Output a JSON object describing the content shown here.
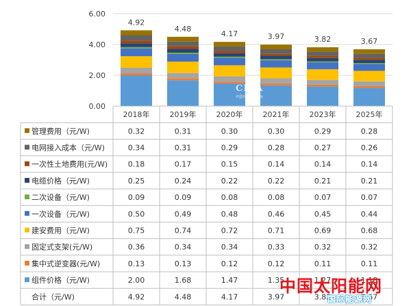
{
  "chart_data": {
    "type": "bar",
    "stacked": true,
    "categories": [
      "2018年",
      "2019年",
      "2020年",
      "2021年",
      "2023年",
      "2025年"
    ],
    "ylim": [
      0,
      6
    ],
    "yticks": [
      "0.00",
      "2.00",
      "4.00",
      "6.00"
    ],
    "totals": [
      "4.92",
      "4.48",
      "4.17",
      "3.97",
      "3.82",
      "3.67"
    ],
    "legend_placement": "table-below",
    "series": [
      {
        "name": "组件价格（元/W)",
        "color": "#5b9bd5",
        "values": [
          2.0,
          1.68,
          1.47,
          1.35,
          1.27,
          1.18
        ]
      },
      {
        "name": "集中式逆变器(元/W)",
        "color": "#ed7d31",
        "values": [
          0.13,
          0.13,
          0.12,
          0.12,
          0.11,
          0.11
        ]
      },
      {
        "name": "固定式支架(元/W)",
        "color": "#a5a5a5",
        "values": [
          0.36,
          0.34,
          0.34,
          0.33,
          0.32,
          0.32
        ]
      },
      {
        "name": "建安费用（元/W)",
        "color": "#ffc000",
        "values": [
          0.75,
          0.74,
          0.72,
          0.71,
          0.69,
          0.68
        ]
      },
      {
        "name": "一次设备（元/W)",
        "color": "#4472c4",
        "values": [
          0.5,
          0.49,
          0.48,
          0.46,
          0.45,
          0.44
        ]
      },
      {
        "name": "二次设备（元/W)",
        "color": "#70ad47",
        "values": [
          0.09,
          0.09,
          0.08,
          0.08,
          0.07,
          0.07
        ]
      },
      {
        "name": "电缆价格（元/W)",
        "color": "#264478",
        "values": [
          0.25,
          0.24,
          0.22,
          0.22,
          0.21,
          0.21
        ]
      },
      {
        "name": "一次性土地费用(元/W)",
        "color": "#9e480e",
        "values": [
          0.18,
          0.17,
          0.15,
          0.14,
          0.14,
          0.14
        ]
      },
      {
        "name": "电网接入成本（元/W)",
        "color": "#636363",
        "values": [
          0.34,
          0.31,
          0.29,
          0.28,
          0.27,
          0.26
        ]
      },
      {
        "name": "管理费用（元/W)",
        "color": "#997300",
        "values": [
          0.32,
          0.31,
          0.3,
          0.3,
          0.29,
          0.28
        ]
      }
    ],
    "table": {
      "row_order": [
        9,
        8,
        7,
        6,
        5,
        4,
        3,
        2,
        1,
        0
      ],
      "display_values": [
        [
          "2.00",
          "1.68",
          "1.47",
          "1.35",
          "1.27",
          "1.18"
        ],
        [
          "0.13",
          "0.13",
          "0.12",
          "0.12",
          "0.11",
          "0.11"
        ],
        [
          "0.36",
          "0.34",
          "0.34",
          "0.33",
          "0.32",
          "0.32"
        ],
        [
          "0.75",
          "0.74",
          "0.72",
          "0.71",
          "0.69",
          "0.68"
        ],
        [
          "0.50",
          "0.49",
          "0.48",
          "0.46",
          "0.45",
          "0.44"
        ],
        [
          "0.09",
          "0.09",
          "0.08",
          "0.08",
          "0.07",
          "0.07"
        ],
        [
          "0.25",
          "0.24",
          "0.22",
          "0.22",
          "0.21",
          "0.21"
        ],
        [
          "0.18",
          "0.17",
          "0.15",
          "0.14",
          "0.14",
          "0.14"
        ],
        [
          "0.34",
          "0.31",
          "0.29",
          "0.28",
          "0.27",
          "0.26"
        ],
        [
          "0.32",
          "0.31",
          "0.30",
          "0.30",
          "0.29",
          "0.28"
        ]
      ],
      "total_label": "合计（元/W)"
    }
  },
  "watermarks": {
    "cpia": "CPIA",
    "cpia_sub": "中国光伏行业协会",
    "main": "中国太阳能网",
    "sub": "国际能源网"
  }
}
